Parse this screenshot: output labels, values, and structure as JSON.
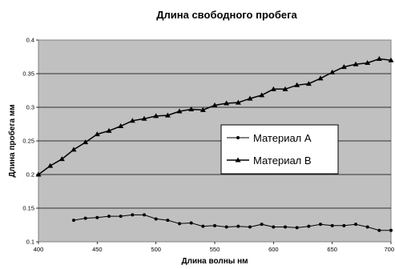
{
  "chart_data": {
    "type": "line",
    "title": "Длина свободного пробега",
    "xlabel": "Длина волны нм",
    "ylabel": "Длина пробега мм",
    "xlim": [
      400,
      700
    ],
    "ylim": [
      0.1,
      0.4
    ],
    "x_ticks": [
      "400",
      "450",
      "500",
      "550",
      "600",
      "650",
      "700"
    ],
    "y_ticks": [
      "0.1",
      "0.15",
      "0.2",
      "0.25",
      "0.3",
      "0.35",
      "0.4"
    ],
    "grid": "horizontal",
    "plot_background": "#c0c0c0",
    "legend_position": "right-middle",
    "series": [
      {
        "name": "Материал A",
        "marker": "circle",
        "color": "#000000",
        "x": [
          430,
          440,
          450,
          460,
          470,
          480,
          490,
          500,
          510,
          520,
          530,
          540,
          550,
          560,
          570,
          580,
          590,
          600,
          610,
          620,
          630,
          640,
          650,
          660,
          670,
          680,
          690,
          700
        ],
        "y": [
          0.132,
          0.135,
          0.136,
          0.138,
          0.138,
          0.14,
          0.14,
          0.134,
          0.132,
          0.127,
          0.128,
          0.123,
          0.124,
          0.122,
          0.123,
          0.122,
          0.126,
          0.122,
          0.122,
          0.121,
          0.123,
          0.126,
          0.124,
          0.124,
          0.126,
          0.122,
          0.117,
          0.117
        ]
      },
      {
        "name": "Материал B",
        "marker": "triangle",
        "color": "#000000",
        "x": [
          400,
          410,
          420,
          430,
          440,
          450,
          460,
          470,
          480,
          490,
          500,
          510,
          520,
          530,
          540,
          550,
          560,
          570,
          580,
          590,
          600,
          610,
          620,
          630,
          640,
          650,
          660,
          670,
          680,
          690,
          700
        ],
        "y": [
          0.2,
          0.213,
          0.223,
          0.237,
          0.248,
          0.26,
          0.265,
          0.272,
          0.28,
          0.283,
          0.287,
          0.288,
          0.294,
          0.297,
          0.296,
          0.303,
          0.306,
          0.307,
          0.313,
          0.318,
          0.327,
          0.327,
          0.333,
          0.335,
          0.343,
          0.352,
          0.36,
          0.364,
          0.366,
          0.372,
          0.37
        ]
      }
    ]
  }
}
